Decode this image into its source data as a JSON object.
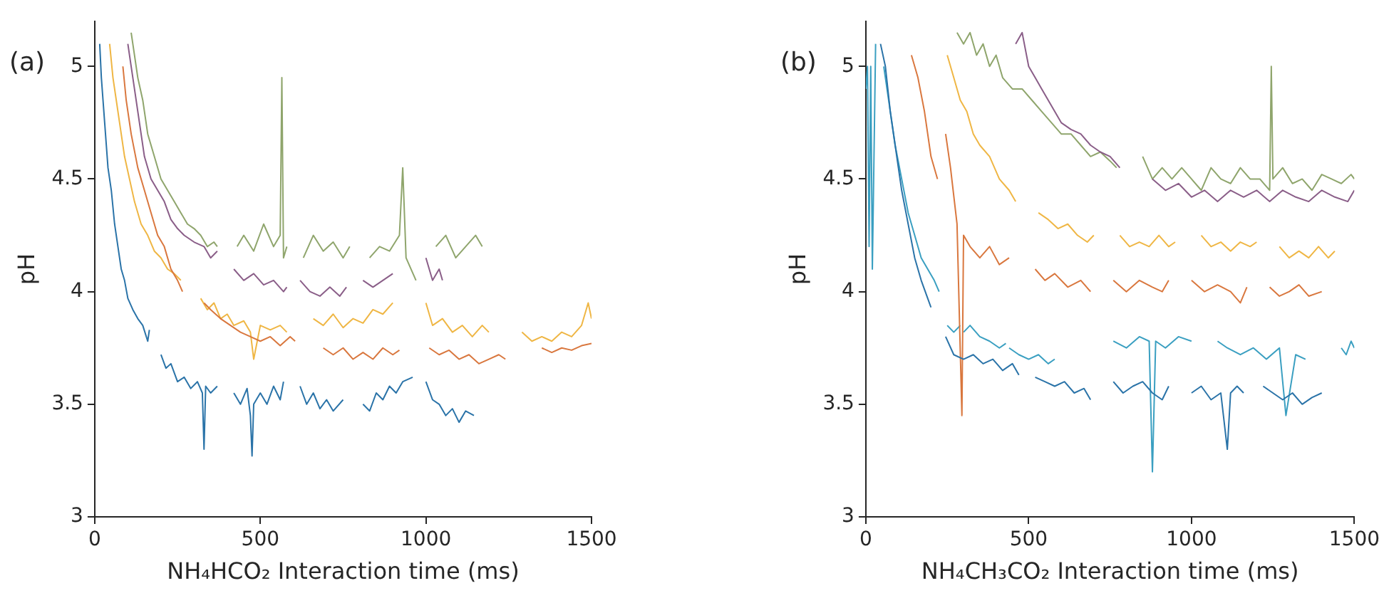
{
  "chart_data": [
    {
      "type": "line",
      "xlabel": "NH₄HCO₂ Interaction time (ms)",
      "ylabel": "pH",
      "annotations": [
        "(a)"
      ],
      "xlim": [
        0,
        1500
      ],
      "xticks": [
        0,
        500,
        1000,
        1500
      ],
      "ylim": [
        3,
        5.2
      ],
      "yticks": [
        3,
        3.5,
        4,
        4.5,
        5
      ],
      "grid": false,
      "legend": false,
      "marker": "none",
      "line_style": "solid",
      "series": [
        {
          "color": "#2a73a8",
          "x": [
            15,
            20,
            25,
            30,
            35,
            40,
            50,
            60,
            70,
            80,
            90,
            100,
            115,
            130,
            145,
            160,
            165,
            180,
            200,
            215,
            230,
            250,
            270,
            290,
            310,
            325,
            330,
            335,
            350,
            370,
            395,
            420,
            440,
            460,
            470,
            475,
            480,
            500,
            520,
            540,
            560,
            570,
            595,
            620,
            640,
            660,
            680,
            700,
            720,
            750,
            780,
            810,
            830,
            850,
            870,
            890,
            910,
            930,
            960,
            980,
            1000,
            1020,
            1040,
            1060,
            1080,
            1100,
            1120,
            1145
          ],
          "values": [
            5.1,
            4.95,
            4.85,
            4.75,
            4.65,
            4.55,
            4.45,
            4.3,
            4.2,
            4.1,
            4.05,
            3.97,
            3.92,
            3.88,
            3.85,
            3.78,
            3.83,
            null,
            3.72,
            3.66,
            3.68,
            3.6,
            3.62,
            3.57,
            3.6,
            3.55,
            3.3,
            3.58,
            3.55,
            3.58,
            null,
            3.55,
            3.5,
            3.57,
            3.45,
            3.27,
            3.5,
            3.55,
            3.5,
            3.58,
            3.52,
            3.6,
            null,
            3.58,
            3.5,
            3.55,
            3.48,
            3.52,
            3.47,
            3.52,
            null,
            3.5,
            3.47,
            3.55,
            3.52,
            3.58,
            3.55,
            3.6,
            3.62,
            null,
            3.6,
            3.52,
            3.5,
            3.45,
            3.48,
            3.42,
            3.47,
            3.45
          ]
        },
        {
          "color": "#d9773e",
          "x": [
            85,
            95,
            110,
            130,
            150,
            170,
            190,
            210,
            230,
            250,
            265,
            295,
            330,
            350,
            380,
            410,
            440,
            470,
            500,
            530,
            560,
            590,
            605,
            650,
            690,
            720,
            750,
            780,
            810,
            840,
            870,
            900,
            920,
            970,
            1010,
            1040,
            1070,
            1100,
            1130,
            1160,
            1190,
            1220,
            1240,
            1300,
            1350,
            1380,
            1410,
            1440,
            1470,
            1500
          ],
          "values": [
            5.0,
            4.85,
            4.7,
            4.55,
            4.45,
            4.35,
            4.25,
            4.2,
            4.1,
            4.05,
            4.0,
            null,
            3.95,
            3.92,
            3.88,
            3.85,
            3.82,
            3.8,
            3.78,
            3.8,
            3.76,
            3.8,
            3.78,
            null,
            3.75,
            3.72,
            3.75,
            3.7,
            3.73,
            3.7,
            3.75,
            3.72,
            3.74,
            null,
            3.75,
            3.72,
            3.74,
            3.7,
            3.72,
            3.68,
            3.7,
            3.72,
            3.7,
            null,
            3.75,
            3.73,
            3.75,
            3.74,
            3.76,
            3.77
          ]
        },
        {
          "color": "#efb644",
          "x": [
            45,
            55,
            65,
            75,
            90,
            105,
            120,
            140,
            160,
            180,
            200,
            220,
            240,
            260,
            290,
            320,
            340,
            360,
            380,
            400,
            420,
            450,
            470,
            480,
            500,
            530,
            560,
            580,
            620,
            660,
            690,
            720,
            750,
            780,
            810,
            840,
            870,
            900,
            950,
            1000,
            1020,
            1050,
            1080,
            1110,
            1140,
            1170,
            1190,
            1240,
            1290,
            1320,
            1350,
            1380,
            1410,
            1440,
            1470,
            1490,
            1500
          ],
          "values": [
            5.1,
            4.95,
            4.85,
            4.75,
            4.6,
            4.5,
            4.4,
            4.3,
            4.25,
            4.18,
            4.15,
            4.1,
            4.08,
            4.05,
            null,
            3.97,
            3.92,
            3.95,
            3.88,
            3.9,
            3.85,
            3.87,
            3.82,
            3.7,
            3.85,
            3.83,
            3.85,
            3.82,
            null,
            3.88,
            3.85,
            3.9,
            3.84,
            3.88,
            3.86,
            3.92,
            3.9,
            3.95,
            null,
            3.95,
            3.85,
            3.88,
            3.82,
            3.85,
            3.8,
            3.85,
            3.82,
            null,
            3.82,
            3.78,
            3.8,
            3.78,
            3.82,
            3.8,
            3.85,
            3.95,
            3.88
          ]
        },
        {
          "color": "#8a5e88",
          "x": [
            100,
            110,
            120,
            135,
            150,
            170,
            190,
            210,
            230,
            250,
            270,
            300,
            330,
            350,
            370,
            400,
            420,
            450,
            480,
            510,
            540,
            570,
            580,
            600,
            620,
            650,
            680,
            710,
            740,
            760,
            790,
            810,
            840,
            870,
            900,
            960,
            1000,
            1020,
            1040,
            1050
          ],
          "values": [
            5.1,
            5.0,
            4.9,
            4.75,
            4.6,
            4.5,
            4.45,
            4.4,
            4.32,
            4.28,
            4.25,
            4.22,
            4.2,
            4.15,
            4.18,
            null,
            4.1,
            4.05,
            4.08,
            4.03,
            4.05,
            4.0,
            4.02,
            null,
            4.05,
            4.0,
            3.98,
            4.02,
            3.98,
            4.02,
            null,
            4.05,
            4.02,
            4.05,
            4.08,
            null,
            4.15,
            4.05,
            4.1,
            4.05
          ]
        },
        {
          "color": "#8fa56c",
          "x": [
            110,
            120,
            130,
            145,
            160,
            180,
            200,
            220,
            240,
            260,
            280,
            300,
            320,
            340,
            360,
            370,
            400,
            430,
            450,
            480,
            510,
            540,
            560,
            565,
            570,
            580,
            610,
            630,
            660,
            690,
            720,
            750,
            770,
            800,
            830,
            860,
            890,
            920,
            930,
            940,
            970,
            1000,
            1030,
            1060,
            1090,
            1120,
            1150,
            1170
          ],
          "values": [
            5.15,
            5.05,
            4.95,
            4.85,
            4.7,
            4.6,
            4.5,
            4.45,
            4.4,
            4.35,
            4.3,
            4.28,
            4.25,
            4.2,
            4.22,
            4.2,
            null,
            4.2,
            4.25,
            4.18,
            4.3,
            4.2,
            4.25,
            4.95,
            4.15,
            4.2,
            null,
            4.15,
            4.25,
            4.18,
            4.22,
            4.15,
            4.2,
            null,
            4.15,
            4.2,
            4.18,
            4.25,
            4.55,
            4.15,
            4.05,
            null,
            4.2,
            4.25,
            4.15,
            4.2,
            4.25,
            4.2
          ]
        }
      ]
    },
    {
      "type": "line",
      "xlabel": "NH₄CH₃CO₂ Interaction time (ms)",
      "ylabel": "pH",
      "annotations": [
        "(b)"
      ],
      "xlim": [
        0,
        1500
      ],
      "xticks": [
        0,
        500,
        1000,
        1500
      ],
      "ylim": [
        3,
        5.2
      ],
      "yticks": [
        3,
        3.5,
        4,
        4.5,
        5
      ],
      "grid": false,
      "legend": false,
      "marker": "none",
      "line_style": "solid",
      "series": [
        {
          "color": "#2a73a8",
          "x": [
            45,
            60,
            75,
            90,
            110,
            130,
            150,
            170,
            190,
            200,
            220,
            245,
            270,
            300,
            330,
            360,
            390,
            420,
            450,
            470,
            500,
            520,
            550,
            580,
            610,
            640,
            670,
            690,
            720,
            760,
            790,
            820,
            850,
            880,
            910,
            930,
            960,
            1000,
            1030,
            1060,
            1090,
            1110,
            1120,
            1140,
            1160,
            1190,
            1220,
            1250,
            1280,
            1310,
            1340,
            1370,
            1400
          ],
          "values": [
            5.1,
            5.0,
            4.8,
            4.65,
            4.45,
            4.3,
            4.15,
            4.05,
            3.97,
            3.93,
            null,
            3.8,
            3.72,
            3.7,
            3.72,
            3.68,
            3.7,
            3.65,
            3.68,
            3.63,
            null,
            3.62,
            3.6,
            3.58,
            3.6,
            3.55,
            3.57,
            3.52,
            null,
            3.6,
            3.55,
            3.58,
            3.6,
            3.55,
            3.52,
            3.58,
            null,
            3.55,
            3.58,
            3.52,
            3.55,
            3.3,
            3.55,
            3.58,
            3.55,
            null,
            3.58,
            3.55,
            3.52,
            3.55,
            3.5,
            3.53,
            3.55
          ]
        },
        {
          "color": "#d9773e",
          "x": [
            140,
            160,
            180,
            200,
            220,
            230,
            245,
            260,
            280,
            295,
            300,
            320,
            350,
            380,
            410,
            440,
            480,
            520,
            550,
            580,
            620,
            660,
            690,
            720,
            760,
            800,
            840,
            880,
            910,
            930,
            960,
            1000,
            1040,
            1080,
            1120,
            1150,
            1170,
            1200,
            1240,
            1270,
            1300,
            1330,
            1360,
            1400
          ],
          "values": [
            5.05,
            4.95,
            4.8,
            4.6,
            4.5,
            null,
            4.7,
            4.55,
            4.3,
            3.45,
            4.25,
            4.2,
            4.15,
            4.2,
            4.12,
            4.15,
            null,
            4.1,
            4.05,
            4.08,
            4.02,
            4.05,
            4.0,
            null,
            4.05,
            4.0,
            4.05,
            4.02,
            4.0,
            4.05,
            null,
            4.05,
            4.0,
            4.03,
            4.0,
            3.95,
            4.02,
            null,
            4.02,
            3.98,
            4.0,
            4.03,
            3.98,
            4.0
          ]
        },
        {
          "color": "#efb644",
          "x": [
            250,
            270,
            290,
            310,
            330,
            350,
            380,
            410,
            440,
            460,
            490,
            530,
            560,
            590,
            620,
            650,
            680,
            700,
            740,
            780,
            810,
            840,
            870,
            900,
            930,
            950,
            990,
            1030,
            1060,
            1090,
            1120,
            1150,
            1180,
            1200,
            1240,
            1270,
            1300,
            1330,
            1360,
            1390,
            1420,
            1440
          ],
          "values": [
            5.05,
            4.95,
            4.85,
            4.8,
            4.7,
            4.65,
            4.6,
            4.5,
            4.45,
            4.4,
            null,
            4.35,
            4.32,
            4.28,
            4.3,
            4.25,
            4.22,
            4.25,
            null,
            4.25,
            4.2,
            4.22,
            4.2,
            4.25,
            4.2,
            4.22,
            null,
            4.25,
            4.2,
            4.22,
            4.18,
            4.22,
            4.2,
            4.22,
            null,
            4.2,
            4.15,
            4.18,
            4.15,
            4.2,
            4.15,
            4.18
          ]
        },
        {
          "color": "#8a5e88",
          "x": [
            460,
            480,
            500,
            520,
            540,
            560,
            580,
            600,
            630,
            660,
            690,
            720,
            750,
            780,
            830,
            880,
            920,
            960,
            1000,
            1040,
            1080,
            1120,
            1160,
            1200,
            1240,
            1280,
            1320,
            1360,
            1400,
            1440,
            1480,
            1500
          ],
          "values": [
            5.1,
            5.15,
            5.0,
            4.95,
            4.9,
            4.85,
            4.8,
            4.75,
            4.72,
            4.7,
            4.65,
            4.62,
            4.6,
            4.55,
            null,
            4.5,
            4.45,
            4.48,
            4.42,
            4.45,
            4.4,
            4.45,
            4.42,
            4.45,
            4.4,
            4.45,
            4.42,
            4.4,
            4.45,
            4.42,
            4.4,
            4.45
          ]
        },
        {
          "color": "#8fa56c",
          "x": [
            280,
            300,
            320,
            340,
            360,
            380,
            400,
            420,
            450,
            480,
            510,
            540,
            570,
            600,
            630,
            660,
            690,
            720,
            750,
            770,
            820,
            850,
            880,
            910,
            940,
            970,
            1000,
            1030,
            1060,
            1090,
            1120,
            1150,
            1180,
            1210,
            1240,
            1245,
            1250,
            1280,
            1310,
            1340,
            1370,
            1400,
            1430,
            1460,
            1490,
            1500
          ],
          "values": [
            5.15,
            5.1,
            5.15,
            5.05,
            5.1,
            5.0,
            5.05,
            4.95,
            4.9,
            4.9,
            4.85,
            4.8,
            4.75,
            4.7,
            4.7,
            4.65,
            4.6,
            4.62,
            4.58,
            4.55,
            null,
            4.6,
            4.5,
            4.55,
            4.5,
            4.55,
            4.5,
            4.45,
            4.55,
            4.5,
            4.48,
            4.55,
            4.5,
            4.5,
            4.45,
            5.0,
            4.5,
            4.55,
            4.48,
            4.5,
            4.45,
            4.52,
            4.5,
            4.48,
            4.52,
            4.5
          ]
        },
        {
          "color": "#3a9fc1",
          "x": [
            0,
            5,
            10,
            15,
            20,
            30,
            40,
            55,
            70,
            90,
            110,
            130,
            150,
            170,
            190,
            210,
            225,
            235,
            250,
            270,
            290,
            295,
            300,
            320,
            350,
            380,
            410,
            430,
            435,
            440,
            470,
            500,
            530,
            560,
            580,
            650,
            760,
            800,
            840,
            870,
            880,
            890,
            920,
            960,
            1000,
            1040,
            1080,
            1110,
            1150,
            1190,
            1230,
            1270,
            1290,
            1320,
            1350,
            1400,
            1460,
            1475,
            1490,
            1500
          ],
          "values": [
            4.9,
            5.0,
            4.2,
            5.0,
            4.1,
            5.1,
            null,
            5.0,
            4.85,
            4.65,
            4.5,
            4.35,
            4.25,
            4.15,
            4.1,
            4.05,
            4.0,
            null,
            3.85,
            3.82,
            3.85,
            null,
            3.82,
            3.85,
            3.8,
            3.78,
            3.75,
            3.77,
            null,
            3.75,
            3.72,
            3.7,
            3.72,
            3.68,
            3.7,
            null,
            3.78,
            3.75,
            3.8,
            3.78,
            3.2,
            3.78,
            3.75,
            3.8,
            3.78,
            null,
            3.78,
            3.75,
            3.72,
            3.75,
            3.7,
            3.75,
            3.45,
            3.72,
            3.7,
            null,
            3.75,
            3.72,
            3.78,
            3.75
          ]
        }
      ]
    }
  ]
}
